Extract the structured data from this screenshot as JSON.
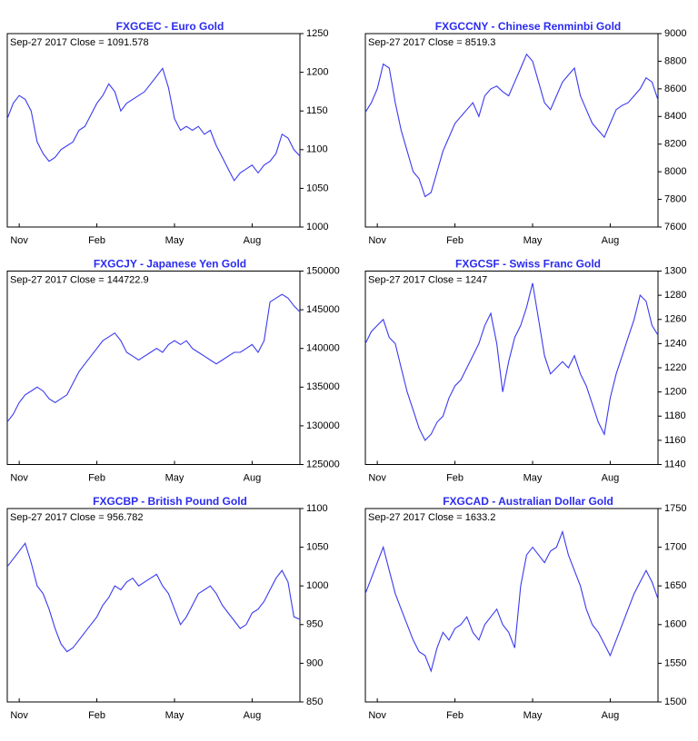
{
  "chart_data": [
    {
      "type": "line",
      "title": "FXGCEC - Euro Gold",
      "annotation": "Sep-27  2017    Close = 1091.578",
      "categories": [
        null,
        null,
        "Nov",
        null,
        null,
        null,
        null,
        null,
        null,
        null,
        null,
        null,
        null,
        null,
        null,
        "Feb",
        null,
        null,
        null,
        null,
        null,
        null,
        null,
        null,
        null,
        null,
        null,
        null,
        "May",
        null,
        null,
        null,
        null,
        null,
        null,
        null,
        null,
        null,
        null,
        null,
        null,
        "Aug",
        null,
        null,
        null,
        null,
        null,
        null,
        null,
        null
      ],
      "series": [
        {
          "name": "FXGCEC",
          "color": "#3a3af0",
          "values": [
            1140,
            1160,
            1170,
            1165,
            1150,
            1110,
            1095,
            1085,
            1090,
            1100,
            1105,
            1110,
            1125,
            1130,
            1145,
            1160,
            1170,
            1185,
            1175,
            1150,
            1160,
            1165,
            1170,
            1175,
            1185,
            1195,
            1205,
            1180,
            1140,
            1125,
            1130,
            1125,
            1130,
            1120,
            1125,
            1105,
            1090,
            1075,
            1060,
            1070,
            1075,
            1080,
            1070,
            1080,
            1085,
            1095,
            1120,
            1115,
            1100,
            1091.578
          ]
        }
      ],
      "ylim": [
        1000,
        1250
      ],
      "yticks": [
        1000,
        1050,
        1100,
        1150,
        1200,
        1250
      ]
    },
    {
      "type": "line",
      "title": "FXGCCNY - Chinese Renminbi Gold",
      "annotation": "Sep-27  2017    Close = 8519.3",
      "categories": [
        null,
        null,
        "Nov",
        null,
        null,
        null,
        null,
        null,
        null,
        null,
        null,
        null,
        null,
        null,
        null,
        "Feb",
        null,
        null,
        null,
        null,
        null,
        null,
        null,
        null,
        null,
        null,
        null,
        null,
        "May",
        null,
        null,
        null,
        null,
        null,
        null,
        null,
        null,
        null,
        null,
        null,
        null,
        "Aug",
        null,
        null,
        null,
        null,
        null,
        null,
        null,
        null
      ],
      "series": [
        {
          "name": "FXGCCNY",
          "color": "#3a3af0",
          "values": [
            8430,
            8500,
            8600,
            8780,
            8750,
            8500,
            8300,
            8150,
            8000,
            7950,
            7820,
            7850,
            8000,
            8150,
            8250,
            8350,
            8400,
            8450,
            8500,
            8400,
            8550,
            8600,
            8620,
            8580,
            8550,
            8650,
            8750,
            8850,
            8800,
            8650,
            8500,
            8450,
            8550,
            8650,
            8700,
            8750,
            8550,
            8450,
            8350,
            8300,
            8250,
            8350,
            8450,
            8480,
            8500,
            8550,
            8600,
            8680,
            8650,
            8519.3
          ]
        }
      ],
      "ylim": [
        7600,
        9000
      ],
      "yticks": [
        7600,
        7800,
        8000,
        8200,
        8400,
        8600,
        8800,
        9000
      ]
    },
    {
      "type": "line",
      "title": "FXGCJY - Japanese Yen Gold",
      "annotation": "Sep-27  2017    Close = 144722.9",
      "categories": [
        null,
        null,
        "Nov",
        null,
        null,
        null,
        null,
        null,
        null,
        null,
        null,
        null,
        null,
        null,
        null,
        "Feb",
        null,
        null,
        null,
        null,
        null,
        null,
        null,
        null,
        null,
        null,
        null,
        null,
        "May",
        null,
        null,
        null,
        null,
        null,
        null,
        null,
        null,
        null,
        null,
        null,
        null,
        "Aug",
        null,
        null,
        null,
        null,
        null,
        null,
        null,
        null
      ],
      "series": [
        {
          "name": "FXGCJY",
          "color": "#3a3af0",
          "values": [
            130500,
            131500,
            133000,
            134000,
            134500,
            135000,
            134500,
            133500,
            133000,
            133500,
            134000,
            135500,
            137000,
            138000,
            139000,
            140000,
            141000,
            141500,
            142000,
            141000,
            139500,
            139000,
            138500,
            139000,
            139500,
            140000,
            139500,
            140500,
            141000,
            140500,
            141000,
            140000,
            139500,
            139000,
            138500,
            138000,
            138500,
            139000,
            139500,
            139500,
            140000,
            140500,
            139500,
            141000,
            146000,
            146500,
            147000,
            146500,
            145500,
            144722.9
          ]
        }
      ],
      "ylim": [
        125000,
        150000
      ],
      "yticks": [
        125000,
        130000,
        135000,
        140000,
        145000,
        150000
      ]
    },
    {
      "type": "line",
      "title": "FXGCSF - Swiss Franc Gold",
      "annotation": "Sep-27  2017    Close = 1247",
      "categories": [
        null,
        null,
        "Nov",
        null,
        null,
        null,
        null,
        null,
        null,
        null,
        null,
        null,
        null,
        null,
        null,
        "Feb",
        null,
        null,
        null,
        null,
        null,
        null,
        null,
        null,
        null,
        null,
        null,
        null,
        "May",
        null,
        null,
        null,
        null,
        null,
        null,
        null,
        null,
        null,
        null,
        null,
        null,
        "Aug",
        null,
        null,
        null,
        null,
        null,
        null,
        null,
        null
      ],
      "series": [
        {
          "name": "FXGCSF",
          "color": "#3a3af0",
          "values": [
            1240,
            1250,
            1255,
            1260,
            1245,
            1240,
            1220,
            1200,
            1185,
            1170,
            1160,
            1165,
            1175,
            1180,
            1195,
            1205,
            1210,
            1220,
            1230,
            1240,
            1255,
            1265,
            1240,
            1200,
            1225,
            1245,
            1255,
            1270,
            1290,
            1260,
            1230,
            1215,
            1220,
            1225,
            1220,
            1230,
            1215,
            1205,
            1190,
            1175,
            1165,
            1195,
            1215,
            1230,
            1245,
            1260,
            1280,
            1275,
            1255,
            1247
          ]
        }
      ],
      "ylim": [
        1140,
        1300
      ],
      "yticks": [
        1140,
        1160,
        1180,
        1200,
        1220,
        1240,
        1260,
        1280,
        1300
      ]
    },
    {
      "type": "line",
      "title": "FXGCBP - British Pound Gold",
      "annotation": "Sep-27  2017    Close = 956.782",
      "categories": [
        null,
        null,
        "Nov",
        null,
        null,
        null,
        null,
        null,
        null,
        null,
        null,
        null,
        null,
        null,
        null,
        "Feb",
        null,
        null,
        null,
        null,
        null,
        null,
        null,
        null,
        null,
        null,
        null,
        null,
        "May",
        null,
        null,
        null,
        null,
        null,
        null,
        null,
        null,
        null,
        null,
        null,
        null,
        "Aug",
        null,
        null,
        null,
        null,
        null,
        null,
        null,
        null
      ],
      "series": [
        {
          "name": "FXGCBP",
          "color": "#3a3af0",
          "values": [
            1025,
            1035,
            1045,
            1055,
            1030,
            1000,
            990,
            970,
            945,
            925,
            915,
            920,
            930,
            940,
            950,
            960,
            975,
            985,
            1000,
            995,
            1005,
            1010,
            1000,
            1005,
            1010,
            1015,
            1000,
            990,
            970,
            950,
            960,
            975,
            990,
            995,
            1000,
            990,
            975,
            965,
            955,
            945,
            950,
            965,
            970,
            980,
            995,
            1010,
            1020,
            1005,
            960,
            956.782
          ]
        }
      ],
      "ylim": [
        850,
        1100
      ],
      "yticks": [
        850,
        900,
        950,
        1000,
        1050,
        1100
      ]
    },
    {
      "type": "line",
      "title": "FXGCAD - Australian Dollar Gold",
      "annotation": "Sep-27  2017    Close = 1633.2",
      "categories": [
        null,
        null,
        "Nov",
        null,
        null,
        null,
        null,
        null,
        null,
        null,
        null,
        null,
        null,
        null,
        null,
        "Feb",
        null,
        null,
        null,
        null,
        null,
        null,
        null,
        null,
        null,
        null,
        null,
        null,
        "May",
        null,
        null,
        null,
        null,
        null,
        null,
        null,
        null,
        null,
        null,
        null,
        null,
        "Aug",
        null,
        null,
        null,
        null,
        null,
        null,
        null,
        null
      ],
      "series": [
        {
          "name": "FXGCAD",
          "color": "#3a3af0",
          "values": [
            1640,
            1660,
            1680,
            1700,
            1670,
            1640,
            1620,
            1600,
            1580,
            1565,
            1560,
            1540,
            1570,
            1590,
            1580,
            1595,
            1600,
            1610,
            1590,
            1580,
            1600,
            1610,
            1620,
            1600,
            1590,
            1570,
            1650,
            1690,
            1700,
            1690,
            1680,
            1695,
            1700,
            1720,
            1690,
            1670,
            1650,
            1620,
            1600,
            1590,
            1575,
            1560,
            1580,
            1600,
            1620,
            1640,
            1655,
            1670,
            1655,
            1633.2
          ]
        }
      ],
      "ylim": [
        1500,
        1750
      ],
      "yticks": [
        1500,
        1550,
        1600,
        1650,
        1700,
        1750
      ]
    }
  ]
}
